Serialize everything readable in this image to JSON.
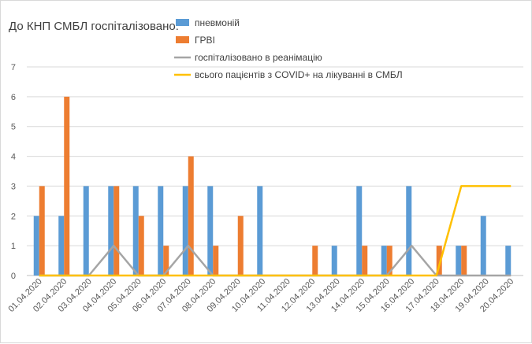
{
  "chart_data": {
    "type": "bar",
    "title": "До КНП СМБЛ госпіталізовано:",
    "categories": [
      "01.04.2020",
      "02.04.2020",
      "03.04.2020",
      "04.04.2020",
      "05.04.2020",
      "06.04.2020",
      "07.04.2020",
      "08.04.2020",
      "09.04.2020",
      "10.04.2020",
      "11.04.2020",
      "12.04.2020",
      "13.04.2020",
      "14.04.2020",
      "15.04.2020",
      "16.04.2020",
      "17.04.2020",
      "18.04.2020",
      "19.04.2020",
      "20.04.2020"
    ],
    "ylim": [
      0,
      7
    ],
    "yticks": [
      "0",
      "1",
      "2",
      "3",
      "4",
      "5",
      "6",
      "7"
    ],
    "grid": true,
    "legend_position": "top",
    "series": [
      {
        "name": "пневмоній",
        "kind": "bar",
        "color": "#5b9bd5",
        "values": [
          2,
          2,
          3,
          3,
          3,
          3,
          3,
          3,
          0,
          3,
          0,
          0,
          1,
          3,
          1,
          3,
          0,
          1,
          2,
          1
        ]
      },
      {
        "name": "ГРВІ",
        "kind": "bar",
        "color": "#ed7d31",
        "values": [
          3,
          6,
          0,
          3,
          2,
          1,
          4,
          1,
          2,
          0,
          0,
          1,
          0,
          1,
          1,
          0,
          1,
          1,
          0,
          0
        ]
      },
      {
        "name": "госпіталізовано в реанімацію",
        "kind": "line",
        "color": "#a5a5a5",
        "values": [
          0,
          0,
          0,
          1,
          0,
          0,
          1,
          0,
          0,
          0,
          0,
          0,
          0,
          0,
          0,
          1,
          0,
          0,
          0,
          0
        ]
      },
      {
        "name": "всього пацієнтів з COVID+ на лікуванні в СМБЛ",
        "kind": "line",
        "color": "#ffc000",
        "values": [
          0,
          0,
          0,
          0,
          0,
          0,
          0,
          0,
          0,
          0,
          0,
          0,
          0,
          0,
          0,
          0,
          0,
          3,
          3,
          3
        ]
      }
    ]
  }
}
